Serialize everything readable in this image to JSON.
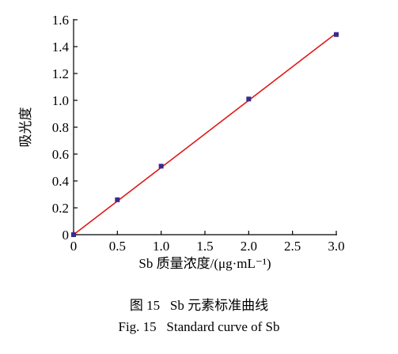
{
  "chart_data": {
    "type": "scatter",
    "title": "",
    "xlabel": "Sb 质量浓度/(μg·mL⁻¹)",
    "ylabel": "吸光度",
    "xlim": [
      0,
      3.0
    ],
    "ylim": [
      0,
      1.6
    ],
    "x_ticks": [
      "0",
      "0.5",
      "1.0",
      "1.5",
      "2.0",
      "2.5",
      "3.0"
    ],
    "y_ticks": [
      "0",
      "0.2",
      "0.4",
      "0.6",
      "0.8",
      "1.0",
      "1.2",
      "1.4",
      "1.6"
    ],
    "grid": false,
    "legend": "none",
    "series": [
      {
        "points": [
          {
            "x": 0,
            "y": 0
          },
          {
            "x": 0.5,
            "y": 0.26
          },
          {
            "x": 1.0,
            "y": 0.51
          },
          {
            "x": 2.0,
            "y": 1.01
          },
          {
            "x": 3.0,
            "y": 1.49
          }
        ],
        "marker_color": "#3a2a8c",
        "fit_line": {
          "from": [
            0,
            0
          ],
          "to": [
            3.0,
            1.5
          ]
        },
        "line_color": "#e01818"
      }
    ]
  },
  "captions": {
    "cn": "图 15   Sb 元素标准曲线",
    "en": "Fig. 15   Standard curve of Sb"
  }
}
